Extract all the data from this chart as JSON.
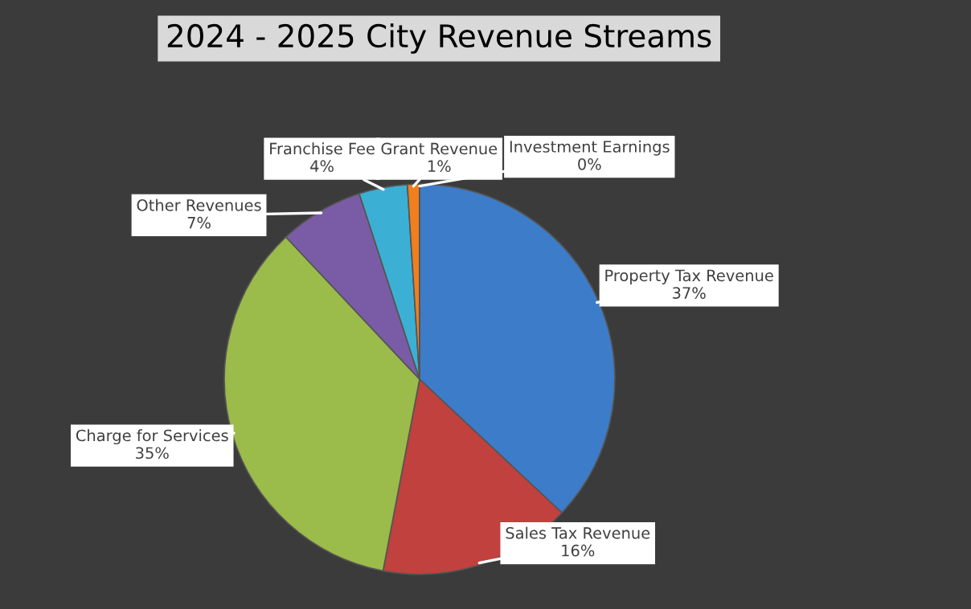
{
  "chart_data": {
    "type": "pie",
    "title": "2024 - 2025 City Revenue Streams",
    "categories": [
      "Property Tax Revenue",
      "Sales Tax Revenue",
      "Charge for Services",
      "Other Revenues",
      "Franchise Fee",
      "Grant Revenue",
      "Investment Earnings"
    ],
    "values": [
      37,
      16,
      35,
      7,
      4,
      1,
      0
    ],
    "value_labels": [
      "37%",
      "16%",
      "35%",
      "7%",
      "4%",
      "1%",
      "0%"
    ],
    "colors": [
      "#3d7cc9",
      "#c0413e",
      "#9bbb4a",
      "#7a5ca6",
      "#3bb0d4",
      "#f07f1e",
      "#2c4d75"
    ],
    "legend": false
  }
}
